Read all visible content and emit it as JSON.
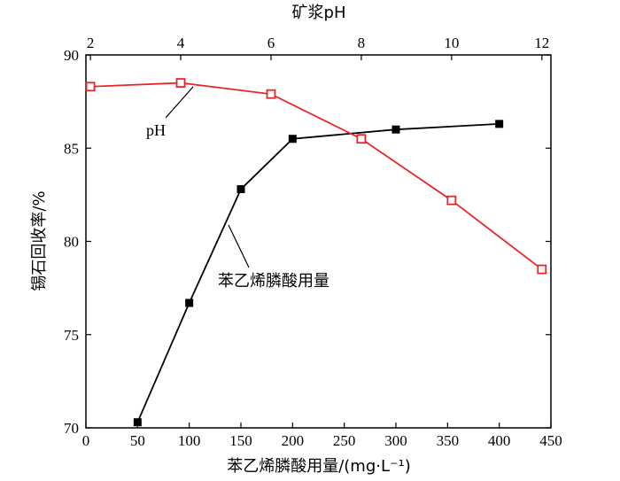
{
  "chart_data": {
    "type": "line",
    "xlabel_bottom": "苯乙烯膦酸用量/(mg·L⁻¹)",
    "xlabel_top": "矿浆pH",
    "ylabel": "锡石回收率/%",
    "xlim_bottom": [
      0,
      450
    ],
    "xticks_bottom": [
      "0",
      "50",
      "100",
      "150",
      "200",
      "250",
      "300",
      "350",
      "400",
      "450"
    ],
    "xlim_top": [
      1.9,
      12.2
    ],
    "xticks_top": [
      "2",
      "4",
      "6",
      "8",
      "10",
      "12"
    ],
    "ylim": [
      70,
      90
    ],
    "yticks": [
      "70",
      "75",
      "80",
      "85",
      "90"
    ],
    "grid": false,
    "series": [
      {
        "name": "苯乙烯膦酸用量",
        "axis": "bottom",
        "color": "#000000",
        "marker": "filled-square",
        "x": [
          50,
          100,
          150,
          200,
          300,
          400
        ],
        "y": [
          70.3,
          76.7,
          82.8,
          85.5,
          86.0,
          86.3
        ]
      },
      {
        "name": "pH",
        "axis": "top",
        "color": "#e8262a",
        "marker": "open-square",
        "x": [
          2,
          4,
          6,
          8,
          10,
          12
        ],
        "y": [
          88.3,
          88.5,
          87.9,
          85.5,
          82.2,
          78.5
        ]
      }
    ]
  }
}
